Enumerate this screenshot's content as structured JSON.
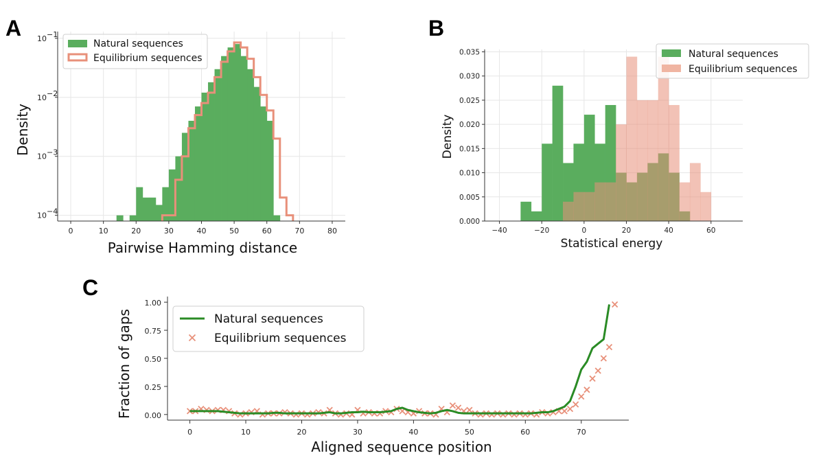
{
  "colors": {
    "natural": "#5aad5e",
    "natural_line": "#2a8b25",
    "equilibrium": "#e8907a",
    "equilibrium_fill": "#f0b5a2"
  },
  "panels": {
    "a": "A",
    "b": "B",
    "c": "C"
  },
  "chart_data": [
    {
      "panel": "A",
      "type": "histogram",
      "xlabel": "Pairwise Hamming distance",
      "ylabel": "Density",
      "yscale": "log",
      "xlim": [
        -4,
        84
      ],
      "ylim": [
        8e-05,
        0.13
      ],
      "xticks": [
        0,
        10,
        20,
        30,
        40,
        50,
        60,
        70,
        80
      ],
      "yticks": [
        {
          "v": 0.0001,
          "b": "10",
          "e": "−4"
        },
        {
          "v": 0.001,
          "b": "10",
          "e": "−3"
        },
        {
          "v": 0.01,
          "b": "10",
          "e": "−2"
        },
        {
          "v": 0.1,
          "b": "10",
          "e": "−1"
        }
      ],
      "bin_width": 2,
      "legend": [
        "Natural sequences",
        "Equilibrium sequences"
      ],
      "natural": {
        "name": "Natural sequences",
        "bins": [
          [
            14,
            0.0001
          ],
          [
            18,
            0.0001
          ],
          [
            20,
            0.0003
          ],
          [
            22,
            0.0002
          ],
          [
            24,
            0.0002
          ],
          [
            26,
            0.00015
          ],
          [
            28,
            0.0003
          ],
          [
            30,
            0.0006
          ],
          [
            32,
            0.001
          ],
          [
            34,
            0.0025
          ],
          [
            36,
            0.004
          ],
          [
            38,
            0.007
          ],
          [
            40,
            0.012
          ],
          [
            42,
            0.018
          ],
          [
            44,
            0.03
          ],
          [
            46,
            0.05
          ],
          [
            48,
            0.07
          ],
          [
            50,
            0.08
          ],
          [
            52,
            0.05
          ],
          [
            54,
            0.03
          ],
          [
            56,
            0.015
          ],
          [
            58,
            0.007
          ],
          [
            60,
            0.004
          ],
          [
            62,
            0.0001
          ]
        ]
      },
      "equilibrium": {
        "name": "Equilibrium sequences",
        "bins": [
          [
            28,
            0.0001
          ],
          [
            30,
            0.0001
          ],
          [
            32,
            0.0004
          ],
          [
            34,
            0.001
          ],
          [
            36,
            0.003
          ],
          [
            38,
            0.005
          ],
          [
            40,
            0.008
          ],
          [
            42,
            0.012
          ],
          [
            44,
            0.022
          ],
          [
            46,
            0.04
          ],
          [
            48,
            0.06
          ],
          [
            50,
            0.085
          ],
          [
            52,
            0.07
          ],
          [
            54,
            0.045
          ],
          [
            56,
            0.022
          ],
          [
            58,
            0.011
          ],
          [
            60,
            0.006
          ],
          [
            62,
            0.002
          ],
          [
            64,
            0.0002
          ],
          [
            66,
            0.0001
          ]
        ]
      }
    },
    {
      "panel": "B",
      "type": "histogram",
      "xlabel": "Statistical energy",
      "ylabel": "Density",
      "xlim": [
        -47,
        75
      ],
      "ylim": [
        0,
        0.0355
      ],
      "xticks": [
        -40,
        -20,
        0,
        20,
        40,
        60
      ],
      "yticks": [
        0,
        0.005,
        0.01,
        0.015,
        0.02,
        0.025,
        0.03,
        0.035
      ],
      "bin_width": 5,
      "legend": [
        "Natural sequences",
        "Equilibrium sequences"
      ],
      "natural": {
        "name": "Natural sequences",
        "bins": [
          [
            -30,
            0.004
          ],
          [
            -25,
            0.002
          ],
          [
            -20,
            0.016
          ],
          [
            -15,
            0.028
          ],
          [
            -10,
            0.012
          ],
          [
            -5,
            0.016
          ],
          [
            0,
            0.022
          ],
          [
            5,
            0.016
          ],
          [
            10,
            0.024
          ],
          [
            15,
            0.01
          ],
          [
            20,
            0.008
          ],
          [
            25,
            0.01
          ],
          [
            30,
            0.012
          ],
          [
            35,
            0.014
          ],
          [
            40,
            0.01
          ],
          [
            45,
            0.002
          ]
        ]
      },
      "equilibrium": {
        "name": "Equilibrium sequences",
        "bins": [
          [
            -10,
            0.004
          ],
          [
            -5,
            0.006
          ],
          [
            0,
            0.006
          ],
          [
            5,
            0.008
          ],
          [
            10,
            0.008
          ],
          [
            15,
            0.02
          ],
          [
            20,
            0.034
          ],
          [
            25,
            0.025
          ],
          [
            30,
            0.025
          ],
          [
            35,
            0.034
          ],
          [
            40,
            0.024
          ],
          [
            45,
            0.008
          ],
          [
            50,
            0.012
          ],
          [
            55,
            0.006
          ]
        ]
      }
    },
    {
      "panel": "C",
      "type": "line+scatter",
      "xlabel": "Aligned sequence position",
      "ylabel": "Fraction of gaps",
      "xlim": [
        -4,
        78.5
      ],
      "ylim": [
        -0.05,
        1.05
      ],
      "xticks": [
        0,
        10,
        20,
        30,
        40,
        50,
        60,
        70
      ],
      "yticks": [
        0,
        0.25,
        0.5,
        0.75,
        1.0
      ],
      "ytick_labels": [
        "0.00",
        "0.25",
        "0.50",
        "0.75",
        "1.00"
      ],
      "legend": [
        "Natural sequences",
        "Equilibrium sequences"
      ],
      "natural": {
        "name": "Natural sequences",
        "x": [
          0,
          1,
          2,
          3,
          4,
          5,
          6,
          7,
          8,
          9,
          10,
          11,
          12,
          13,
          14,
          15,
          16,
          17,
          18,
          19,
          20,
          21,
          22,
          23,
          24,
          25,
          26,
          27,
          28,
          29,
          30,
          31,
          32,
          33,
          34,
          35,
          36,
          37,
          38,
          39,
          40,
          41,
          42,
          43,
          44,
          45,
          46,
          47,
          48,
          49,
          50,
          51,
          52,
          53,
          54,
          55,
          56,
          57,
          58,
          59,
          60,
          61,
          62,
          63,
          64,
          65,
          66,
          67,
          68,
          69,
          70,
          71,
          72,
          73,
          74,
          75
        ],
        "y": [
          0.03,
          0.03,
          0.03,
          0.03,
          0.03,
          0.03,
          0.025,
          0.02,
          0.015,
          0.01,
          0.01,
          0.01,
          0.01,
          0.01,
          0.01,
          0.015,
          0.015,
          0.01,
          0.01,
          0.01,
          0.01,
          0.01,
          0.01,
          0.01,
          0.015,
          0.02,
          0.01,
          0.01,
          0.015,
          0.02,
          0.02,
          0.025,
          0.02,
          0.02,
          0.02,
          0.025,
          0.03,
          0.05,
          0.06,
          0.04,
          0.03,
          0.02,
          0.015,
          0.01,
          0.015,
          0.03,
          0.04,
          0.03,
          0.015,
          0.01,
          0.01,
          0.01,
          0.01,
          0.01,
          0.01,
          0.01,
          0.01,
          0.01,
          0.01,
          0.01,
          0.01,
          0.01,
          0.015,
          0.02,
          0.02,
          0.03,
          0.05,
          0.07,
          0.12,
          0.25,
          0.4,
          0.47,
          0.59,
          0.63,
          0.67,
          0.98
        ]
      },
      "equilibrium": {
        "name": "Equilibrium sequences",
        "x": [
          0,
          1,
          2,
          3,
          4,
          5,
          6,
          7,
          8,
          9,
          10,
          11,
          12,
          13,
          14,
          15,
          16,
          17,
          18,
          19,
          20,
          21,
          22,
          23,
          24,
          25,
          26,
          27,
          28,
          29,
          30,
          31,
          32,
          33,
          34,
          35,
          36,
          37,
          38,
          39,
          40,
          41,
          42,
          43,
          44,
          45,
          46,
          47,
          48,
          49,
          50,
          51,
          52,
          53,
          54,
          55,
          56,
          57,
          58,
          59,
          60,
          61,
          62,
          63,
          64,
          65,
          66,
          67,
          68,
          69,
          70,
          71,
          72,
          73,
          74,
          75,
          76
        ],
        "y": [
          0.03,
          0.03,
          0.05,
          0.04,
          0.03,
          0.04,
          0.04,
          0.03,
          0.01,
          0.0,
          0.01,
          0.02,
          0.03,
          0.0,
          0.01,
          0.01,
          0.01,
          0.02,
          0.01,
          0.0,
          0.01,
          0.0,
          0.01,
          0.02,
          0.01,
          0.04,
          0.01,
          0.0,
          0.01,
          0.0,
          0.04,
          0.01,
          0.02,
          0.01,
          0.01,
          0.03,
          0.02,
          0.05,
          0.03,
          0.02,
          0.01,
          0.03,
          0.01,
          0.01,
          0.0,
          0.05,
          0.02,
          0.08,
          0.06,
          0.03,
          0.04,
          0.01,
          0.0,
          0.01,
          0.0,
          0.01,
          0.0,
          0.01,
          0.0,
          0.01,
          0.0,
          0.01,
          0.0,
          0.02,
          0.01,
          0.02,
          0.03,
          0.03,
          0.05,
          0.09,
          0.16,
          0.22,
          0.32,
          0.39,
          0.5,
          0.6,
          0.98
        ]
      }
    }
  ]
}
